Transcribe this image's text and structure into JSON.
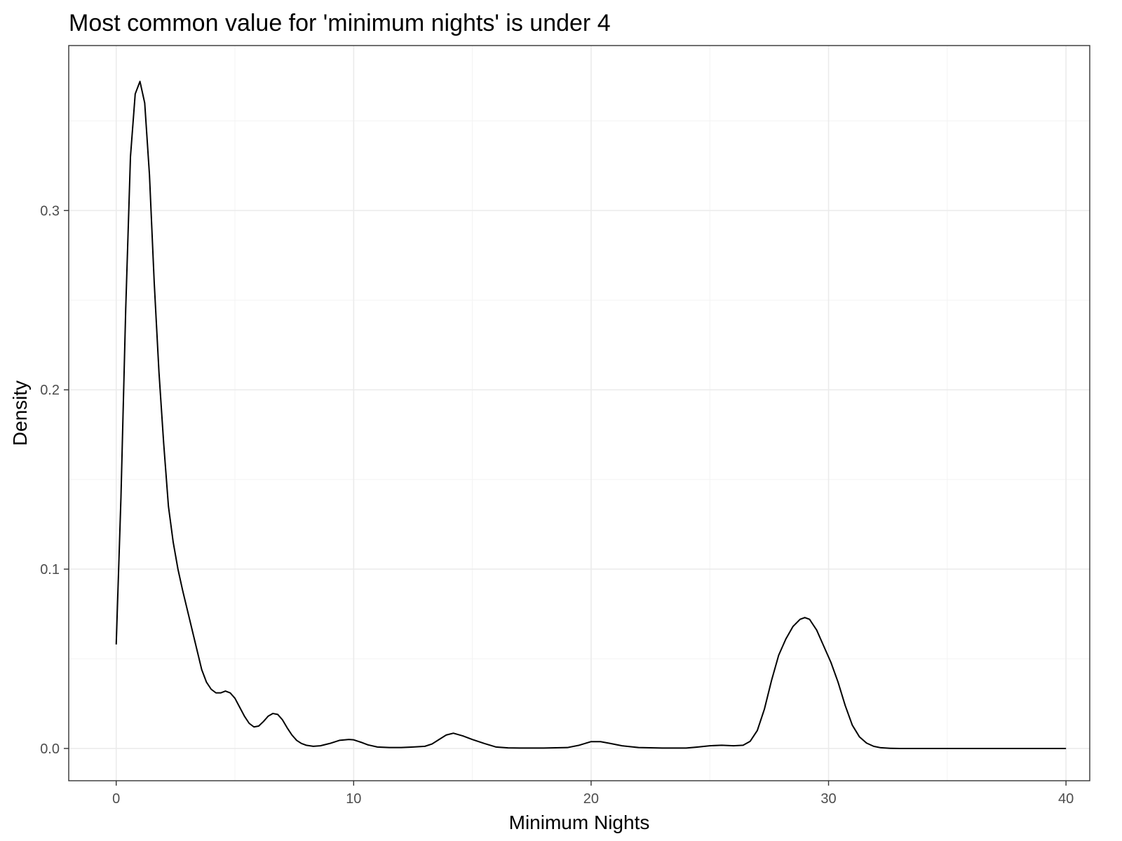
{
  "chart_data": {
    "type": "line",
    "title": "Most common value for 'minimum nights' is under 4",
    "xlabel": "Minimum Nights",
    "ylabel": "Density",
    "xlim": [
      -2,
      41
    ],
    "ylim": [
      -0.018,
      0.392
    ],
    "x_ticks": [
      0,
      10,
      20,
      30,
      40
    ],
    "y_ticks": [
      0.0,
      0.1,
      0.2,
      0.3
    ],
    "x_tick_labels": [
      "0",
      "10",
      "20",
      "30",
      "40"
    ],
    "y_tick_labels": [
      "0.0",
      "0.1",
      "0.2",
      "0.3"
    ],
    "grid": true,
    "legend": "none",
    "series": [
      {
        "x": [
          0,
          0.2,
          0.4,
          0.6,
          0.8,
          1.0,
          1.2,
          1.4,
          1.6,
          1.8,
          2.0,
          2.2,
          2.4,
          2.6,
          2.8,
          3.0,
          3.2,
          3.4,
          3.6,
          3.8,
          4.0,
          4.2,
          4.4,
          4.6,
          4.8,
          5.0,
          5.2,
          5.4,
          5.6,
          5.8,
          6.0,
          6.2,
          6.4,
          6.6,
          6.8,
          7.0,
          7.2,
          7.4,
          7.6,
          7.8,
          8.0,
          8.3,
          8.6,
          9.0,
          9.4,
          9.8,
          10.0,
          10.3,
          10.6,
          11.0,
          11.5,
          12.0,
          12.5,
          13.0,
          13.3,
          13.6,
          13.9,
          14.2,
          14.6,
          15.0,
          15.5,
          16.0,
          16.5,
          17.0,
          18.0,
          19.0,
          19.5,
          20.0,
          20.4,
          20.8,
          21.3,
          22.0,
          23.0,
          24.0,
          24.5,
          25.0,
          25.5,
          26.0,
          26.4,
          26.7,
          27.0,
          27.3,
          27.6,
          27.9,
          28.2,
          28.5,
          28.8,
          29.0,
          29.2,
          29.5,
          29.8,
          30.1,
          30.4,
          30.7,
          31.0,
          31.3,
          31.6,
          31.9,
          32.2,
          32.6,
          33.0,
          34.0,
          35.0,
          36.0,
          37.0,
          38.0,
          39.0,
          40.0
        ],
        "y": [
          0.058,
          0.14,
          0.245,
          0.33,
          0.365,
          0.372,
          0.36,
          0.32,
          0.26,
          0.21,
          0.17,
          0.135,
          0.115,
          0.1,
          0.088,
          0.077,
          0.066,
          0.055,
          0.044,
          0.037,
          0.033,
          0.031,
          0.031,
          0.032,
          0.031,
          0.028,
          0.023,
          0.018,
          0.014,
          0.012,
          0.0125,
          0.015,
          0.018,
          0.0195,
          0.019,
          0.016,
          0.0115,
          0.0075,
          0.0045,
          0.0028,
          0.0018,
          0.0012,
          0.0015,
          0.0028,
          0.0045,
          0.005,
          0.0048,
          0.0035,
          0.002,
          0.0008,
          0.0005,
          0.0005,
          0.0008,
          0.0012,
          0.0025,
          0.005,
          0.0075,
          0.0085,
          0.007,
          0.005,
          0.0028,
          0.0008,
          0.0003,
          0.0002,
          0.0002,
          0.0005,
          0.0018,
          0.0038,
          0.0038,
          0.0028,
          0.0015,
          0.0005,
          0.0002,
          0.0002,
          0.0008,
          0.0015,
          0.0018,
          0.0015,
          0.0018,
          0.004,
          0.01,
          0.022,
          0.038,
          0.052,
          0.061,
          0.068,
          0.072,
          0.073,
          0.072,
          0.066,
          0.057,
          0.048,
          0.037,
          0.024,
          0.013,
          0.0065,
          0.003,
          0.0012,
          0.0004,
          0.0001,
          0.0,
          0.0,
          0.0,
          0.0,
          0.0,
          0.0,
          0.0,
          0.0
        ]
      }
    ]
  }
}
